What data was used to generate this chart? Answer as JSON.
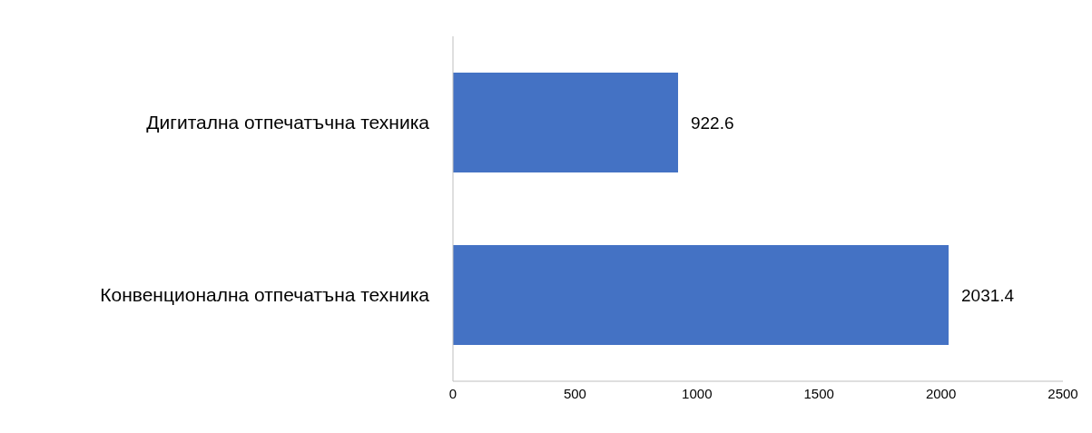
{
  "chart_data": {
    "type": "bar",
    "orientation": "horizontal",
    "categories": [
      "Дигитална отпечатъчна техника",
      "Конвенционална отпечатъна техника"
    ],
    "values": [
      922.6,
      2031.4
    ],
    "color": "#4472c4",
    "xlim": [
      0,
      2500
    ],
    "xticks": [
      0,
      500,
      1000,
      1500,
      2000,
      2500
    ],
    "data_labels": true,
    "grid": false
  }
}
